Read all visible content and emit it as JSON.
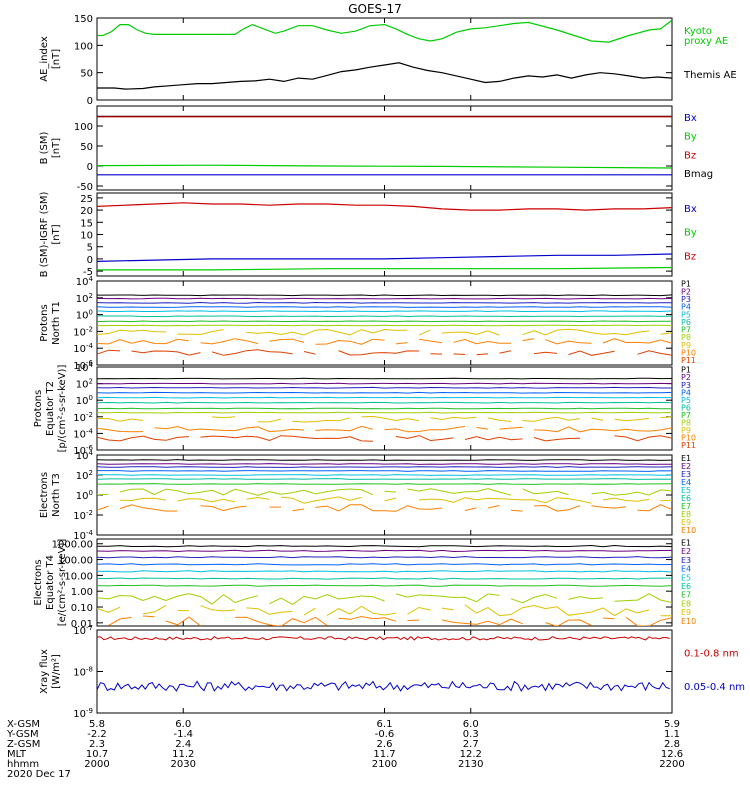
{
  "title": "GOES-17",
  "time": {
    "start": 2000,
    "end": 2200,
    "mid_label": "2020 Dec 17"
  },
  "footer": {
    "row_labels": [
      "X-GSM",
      "Y-GSM",
      "Z-GSM",
      "MLT",
      "hhmm"
    ],
    "columns": [
      {
        "t": 2000,
        "values": [
          "5.8",
          "-2.2",
          "2.3",
          "10.7",
          "2000"
        ]
      },
      {
        "t": 2030,
        "values": [
          "6.0",
          "-1.4",
          "2.4",
          "11.2",
          "2030"
        ]
      },
      {
        "t": 2100,
        "values": [
          "6.1",
          "-0.6",
          "2.6",
          "11.7",
          "2100"
        ]
      },
      {
        "t": 2130,
        "values": [
          "6.0",
          "0.3",
          "2.7",
          "12.2",
          "2130"
        ]
      },
      {
        "t": 2200,
        "values": [
          "5.9",
          "1.1",
          "2.8",
          "12.6",
          "2200"
        ]
      }
    ],
    "date": "2020 Dec 17"
  },
  "colors": {
    "black": "#000000",
    "green": "#00cc00",
    "blue": "#0000cc",
    "red": "#cc0000",
    "ch": [
      "#000000",
      "#6a0080",
      "#2020c0",
      "#0060ff",
      "#00c0e0",
      "#00c0a0",
      "#20c020",
      "#a0d000",
      "#e0c000",
      "#ff8000",
      "#e04000",
      "#c00000"
    ]
  },
  "chart_data": [
    {
      "type": "line",
      "id": "ae",
      "ylabel": [
        "AE_index",
        "[nT]"
      ],
      "ylim": [
        0,
        150
      ],
      "ticks": [
        "0",
        "50",
        "100",
        "150"
      ],
      "tickvals": [
        0,
        50,
        100,
        150
      ],
      "legend": [
        {
          "text": "Kyoto",
          "color": "#00cc00"
        },
        {
          "text": "proxy AE",
          "color": "#00cc00"
        },
        {
          "text": "",
          "color": "#000"
        },
        {
          "text": "Themis AE",
          "color": "#000000"
        }
      ],
      "series": [
        {
          "name": "Kyoto proxy AE",
          "color": "#00cc00",
          "points": [
            [
              2000,
              118
            ],
            [
              2002,
              118
            ],
            [
              2005,
              125
            ],
            [
              2008,
              138
            ],
            [
              2011,
              138
            ],
            [
              2014,
              128
            ],
            [
              2017,
              122
            ],
            [
              2020,
              120
            ],
            [
              2030,
              120
            ],
            [
              2040,
              120
            ],
            [
              2048,
              120
            ],
            [
              2051,
              130
            ],
            [
              2054,
              138
            ],
            [
              2058,
              130
            ],
            [
              2062,
              122
            ],
            [
              2065,
              126
            ],
            [
              2070,
              136
            ],
            [
              2075,
              136
            ],
            [
              2080,
              128
            ],
            [
              2085,
              122
            ],
            [
              2090,
              126
            ],
            [
              2095,
              136
            ],
            [
              2100,
              138
            ],
            [
              2104,
              130
            ],
            [
              2108,
              120
            ],
            [
              2112,
              112
            ],
            [
              2116,
              108
            ],
            [
              2120,
              112
            ],
            [
              2125,
              124
            ],
            [
              2130,
              130
            ],
            [
              2135,
              132
            ],
            [
              2140,
              136
            ],
            [
              2145,
              140
            ],
            [
              2150,
              142
            ],
            [
              2160,
              128
            ],
            [
              2166,
              118
            ],
            [
              2172,
              108
            ],
            [
              2178,
              106
            ],
            [
              2185,
              118
            ],
            [
              2192,
              128
            ],
            [
              2196,
              130
            ],
            [
              2200,
              146
            ]
          ]
        },
        {
          "name": "Themis AE",
          "color": "#000000",
          "points": [
            [
              2000,
              22
            ],
            [
              2006,
              22
            ],
            [
              2010,
              20
            ],
            [
              2016,
              21
            ],
            [
              2020,
              24
            ],
            [
              2025,
              26
            ],
            [
              2030,
              28
            ],
            [
              2035,
              30
            ],
            [
              2040,
              30
            ],
            [
              2045,
              32
            ],
            [
              2050,
              34
            ],
            [
              2055,
              35
            ],
            [
              2060,
              38
            ],
            [
              2065,
              34
            ],
            [
              2070,
              40
            ],
            [
              2075,
              38
            ],
            [
              2080,
              45
            ],
            [
              2085,
              52
            ],
            [
              2090,
              55
            ],
            [
              2095,
              60
            ],
            [
              2100,
              64
            ],
            [
              2105,
              68
            ],
            [
              2110,
              60
            ],
            [
              2115,
              54
            ],
            [
              2120,
              50
            ],
            [
              2125,
              44
            ],
            [
              2130,
              38
            ],
            [
              2135,
              32
            ],
            [
              2140,
              34
            ],
            [
              2145,
              40
            ],
            [
              2150,
              44
            ],
            [
              2155,
              42
            ],
            [
              2160,
              46
            ],
            [
              2165,
              40
            ],
            [
              2170,
              46
            ],
            [
              2175,
              50
            ],
            [
              2180,
              48
            ],
            [
              2185,
              44
            ],
            [
              2190,
              40
            ],
            [
              2195,
              42
            ],
            [
              2200,
              40
            ]
          ]
        }
      ]
    },
    {
      "type": "line",
      "id": "bsm",
      "ylabel": [
        "B (SM)",
        "[nT]"
      ],
      "ylim": [
        -60,
        150
      ],
      "ticks": [
        "-50",
        "0",
        "50",
        "100"
      ],
      "tickvals": [
        -50,
        0,
        50,
        100
      ],
      "legend": [
        {
          "text": "Bx",
          "color": "#0000cc"
        },
        {
          "text": "By",
          "color": "#00cc00"
        },
        {
          "text": "Bz",
          "color": "#cc0000"
        },
        {
          "text": "Bmag",
          "color": "#000000"
        }
      ],
      "series": [
        {
          "name": "Bmag",
          "color": "#000000",
          "points": [
            [
              2000,
              124
            ],
            [
              2050,
              124
            ],
            [
              2100,
              124
            ],
            [
              2150,
              124
            ],
            [
              2200,
              124
            ]
          ]
        },
        {
          "name": "Bz",
          "color": "#cc0000",
          "points": [
            [
              2000,
              123
            ],
            [
              2050,
              123
            ],
            [
              2100,
              123
            ],
            [
              2150,
              123
            ],
            [
              2200,
              123
            ]
          ]
        },
        {
          "name": "By",
          "color": "#00cc00",
          "points": [
            [
              2000,
              1
            ],
            [
              2040,
              2
            ],
            [
              2080,
              0
            ],
            [
              2120,
              -1
            ],
            [
              2160,
              -3
            ],
            [
              2200,
              -5
            ]
          ]
        },
        {
          "name": "Bx",
          "color": "#0000cc",
          "points": [
            [
              2000,
              -22
            ],
            [
              2040,
              -22
            ],
            [
              2080,
              -22
            ],
            [
              2120,
              -22
            ],
            [
              2160,
              -22
            ],
            [
              2200,
              -22
            ]
          ]
        }
      ]
    },
    {
      "type": "line",
      "id": "bigrf",
      "ylabel": [
        "B (SM)-IGRF (SM)",
        "[nT]"
      ],
      "ylim": [
        -7,
        27
      ],
      "ticks": [
        "-5",
        "0",
        "5",
        "10",
        "15",
        "20",
        "25"
      ],
      "tickvals": [
        -5,
        0,
        5,
        10,
        15,
        20,
        25
      ],
      "legend": [
        {
          "text": "Bx",
          "color": "#0000cc"
        },
        {
          "text": "By",
          "color": "#00cc00"
        },
        {
          "text": "Bz",
          "color": "#cc0000"
        }
      ],
      "series": [
        {
          "name": "Bz",
          "color": "#cc0000",
          "points": [
            [
              2000,
              21.5
            ],
            [
              2010,
              22
            ],
            [
              2020,
              22.5
            ],
            [
              2030,
              23
            ],
            [
              2040,
              22.5
            ],
            [
              2050,
              22.5
            ],
            [
              2060,
              22
            ],
            [
              2070,
              22.5
            ],
            [
              2080,
              22.5
            ],
            [
              2090,
              22
            ],
            [
              2100,
              22
            ],
            [
              2110,
              21.5
            ],
            [
              2120,
              20.5
            ],
            [
              2130,
              20
            ],
            [
              2140,
              20
            ],
            [
              2150,
              20.5
            ],
            [
              2160,
              20.5
            ],
            [
              2170,
              20
            ],
            [
              2180,
              20.5
            ],
            [
              2190,
              20.5
            ],
            [
              2200,
              21
            ]
          ]
        },
        {
          "name": "Bx",
          "color": "#0000cc",
          "points": [
            [
              2000,
              -1
            ],
            [
              2020,
              -0.5
            ],
            [
              2040,
              0
            ],
            [
              2060,
              0
            ],
            [
              2080,
              0
            ],
            [
              2100,
              0
            ],
            [
              2120,
              0.5
            ],
            [
              2140,
              1
            ],
            [
              2160,
              1.5
            ],
            [
              2180,
              1.5
            ],
            [
              2200,
              2
            ]
          ]
        },
        {
          "name": "By",
          "color": "#00cc00",
          "points": [
            [
              2000,
              -4.5
            ],
            [
              2040,
              -4.5
            ],
            [
              2080,
              -4
            ],
            [
              2120,
              -4
            ],
            [
              2160,
              -4
            ],
            [
              2200,
              -3.5
            ]
          ]
        }
      ]
    },
    {
      "type": "line",
      "id": "pnorth",
      "log": true,
      "ylabel": [
        "Protons",
        "North T1"
      ],
      "ylim": [
        -6,
        4
      ],
      "ticks": [
        "10^-6",
        "10^-4",
        "10^-2",
        "10^0",
        "10^2",
        "10^4"
      ],
      "tickvals": [
        -6,
        -4,
        -2,
        0,
        2,
        4
      ],
      "legend": [
        "P1",
        "P2",
        "P3",
        "P4",
        "P5",
        "P6",
        "P7",
        "P8",
        "P9",
        "P10",
        "P11"
      ],
      "levels": [
        2.3,
        1.9,
        1.4,
        0.9,
        0.4,
        -0.2,
        -0.8,
        -1.3,
        -2.1,
        -3.2,
        -4.5
      ]
    },
    {
      "type": "line",
      "id": "pequator",
      "log": true,
      "ylabel": [
        "Protons",
        "Equator T2",
        "[p/(cm²-s-sr-keV)]"
      ],
      "ylim": [
        -6,
        4
      ],
      "ticks": [
        "10^-6",
        "10^-4",
        "10^-2",
        "10^0",
        "10^2",
        "10^4"
      ],
      "tickvals": [
        -6,
        -4,
        -2,
        0,
        2,
        4
      ],
      "legend": [
        "P1",
        "P2",
        "P3",
        "P4",
        "P5",
        "P6",
        "P7",
        "P8",
        "P9",
        "P10",
        "P11"
      ],
      "levels": [
        2.6,
        2.0,
        1.5,
        0.9,
        0.3,
        -0.3,
        -1.0,
        -1.5,
        -2.3,
        -3.5,
        -4.6
      ]
    },
    {
      "type": "line",
      "id": "enorth",
      "log": true,
      "ylabel": [
        "Electrons",
        "North T3"
      ],
      "ylim": [
        -4,
        4
      ],
      "ticks": [
        "10^-4",
        "10^-2",
        "10^0",
        "10^2",
        "10^4"
      ],
      "tickvals": [
        -4,
        -2,
        0,
        2,
        4
      ],
      "legend": [
        "E1",
        "E2",
        "E3",
        "E4",
        "E5",
        "E6",
        "E7",
        "E8",
        "E9",
        "E10"
      ],
      "levels": [
        3.5,
        3.1,
        2.8,
        2.4,
        2.0,
        1.6,
        1.1,
        0.3,
        -0.5,
        -1.3
      ]
    },
    {
      "type": "line",
      "id": "eequator",
      "log": true,
      "ylabel": [
        "Electrons",
        "Equator T4",
        "[e/(cm²-s-sr-keV)]"
      ],
      "ylim": [
        -2.2,
        3.3
      ],
      "ticks": [
        "0.01",
        "0.10",
        "1.00",
        "10.00",
        "100.00",
        "1000.00"
      ],
      "tickvals": [
        -2,
        -1,
        0,
        1,
        2,
        3
      ],
      "legend": [
        "E1",
        "E2",
        "E3",
        "E4",
        "E5",
        "E6",
        "E7",
        "E8",
        "E9",
        "E10"
      ],
      "levels": [
        2.85,
        2.55,
        2.15,
        1.7,
        1.25,
        0.8,
        0.35,
        -0.5,
        -1.2,
        -1.9
      ]
    },
    {
      "type": "line",
      "id": "xray",
      "log": true,
      "ylabel": [
        "Xray flux",
        "[W/m²]"
      ],
      "ylim": [
        -9,
        -7
      ],
      "ticks": [
        "10^-9",
        "10^-8",
        "10^-7"
      ],
      "tickvals": [
        -9,
        -8,
        -7
      ],
      "legend": [
        {
          "text": "0.1-0.8 nm",
          "color": "#cc0000"
        },
        {
          "text": "0.05-0.4 nm",
          "color": "#0000cc"
        }
      ],
      "series": [
        {
          "name": "0.1-0.8 nm",
          "color": "#cc0000",
          "base": -7.2,
          "noise": 0.04
        },
        {
          "name": "0.05-0.4 nm",
          "color": "#0000cc",
          "base": -8.35,
          "noise": 0.12
        }
      ]
    }
  ]
}
